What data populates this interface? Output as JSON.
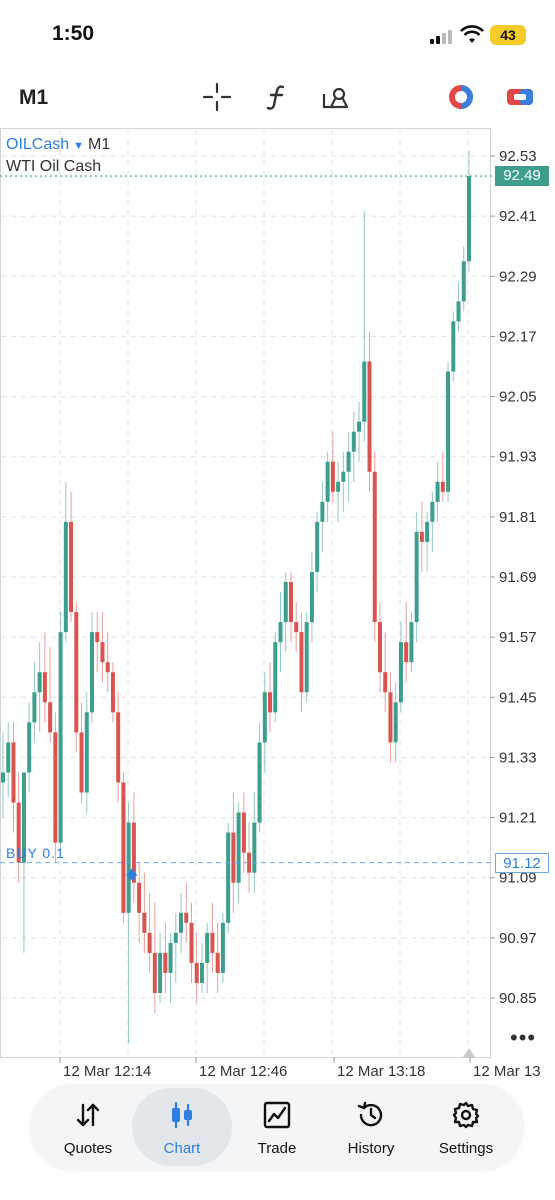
{
  "status": {
    "time": "1:50",
    "battery": "43"
  },
  "toolbar": {
    "timeframe": "M1"
  },
  "symbol": {
    "name": "OILCash",
    "timeframe": "M1",
    "description": "WTI Oil Cash"
  },
  "price_tags": {
    "current": "92.49",
    "buy": "91.12"
  },
  "buy_label": "BUY 0.1",
  "more": "•••",
  "chart_data": {
    "type": "candlestick",
    "y_ticks": [
      "92.53",
      "92.41",
      "92.29",
      "92.17",
      "92.05",
      "91.93",
      "91.81",
      "91.69",
      "91.57",
      "91.45",
      "91.33",
      "91.21",
      "91.09",
      "90.97",
      "90.85"
    ],
    "x_ticks": [
      "12 Mar 12:14",
      "12 Mar 12:46",
      "12 Mar 13:18",
      "12 Mar 13"
    ],
    "ylim": [
      90.78,
      92.56
    ],
    "current_price": 92.49,
    "buy_price": 91.12,
    "colors": {
      "up": "#3d9e8d",
      "down": "#d9534f",
      "grid": "#dde1e5",
      "current_line": "#3d9e8d",
      "buy_line": "#6aa8e8"
    },
    "candles": [
      [
        91.28,
        91.38,
        91.21,
        91.3
      ],
      [
        91.3,
        91.4,
        91.25,
        91.36
      ],
      [
        91.36,
        91.4,
        91.18,
        91.24
      ],
      [
        91.24,
        91.3,
        91.08,
        91.12
      ],
      [
        91.12,
        91.3,
        90.94,
        91.3
      ],
      [
        91.3,
        91.44,
        91.26,
        91.4
      ],
      [
        91.4,
        91.52,
        91.36,
        91.46
      ],
      [
        91.46,
        91.56,
        91.38,
        91.5
      ],
      [
        91.5,
        91.58,
        91.4,
        91.44
      ],
      [
        91.44,
        91.55,
        91.36,
        91.38
      ],
      [
        91.38,
        91.42,
        91.12,
        91.16
      ],
      [
        91.16,
        91.62,
        91.14,
        91.58
      ],
      [
        91.58,
        91.88,
        91.56,
        91.8
      ],
      [
        91.8,
        91.86,
        91.6,
        91.62
      ],
      [
        91.62,
        91.64,
        91.34,
        91.38
      ],
      [
        91.38,
        91.44,
        91.24,
        91.26
      ],
      [
        91.26,
        91.46,
        91.22,
        91.42
      ],
      [
        91.42,
        91.62,
        91.4,
        91.58
      ],
      [
        91.58,
        91.62,
        91.5,
        91.56
      ],
      [
        91.56,
        91.62,
        91.48,
        91.52
      ],
      [
        91.52,
        91.58,
        91.46,
        91.5
      ],
      [
        91.5,
        91.52,
        91.4,
        91.42
      ],
      [
        91.42,
        91.46,
        91.24,
        91.28
      ],
      [
        91.28,
        91.3,
        91.0,
        91.02
      ],
      [
        91.02,
        91.24,
        90.76,
        91.2
      ],
      [
        91.2,
        91.26,
        91.04,
        91.08
      ],
      [
        91.08,
        91.12,
        90.96,
        91.02
      ],
      [
        91.02,
        91.1,
        90.94,
        90.98
      ],
      [
        90.98,
        91.06,
        90.9,
        90.94
      ],
      [
        90.94,
        91.04,
        90.82,
        90.86
      ],
      [
        90.86,
        90.98,
        90.84,
        90.94
      ],
      [
        90.94,
        91.0,
        90.86,
        90.9
      ],
      [
        90.9,
        90.98,
        90.84,
        90.96
      ],
      [
        90.96,
        91.02,
        90.88,
        90.98
      ],
      [
        90.98,
        91.06,
        90.94,
        91.02
      ],
      [
        91.02,
        91.08,
        90.96,
        91.0
      ],
      [
        91.0,
        91.04,
        90.88,
        90.92
      ],
      [
        90.92,
        90.98,
        90.84,
        90.88
      ],
      [
        90.88,
        90.96,
        90.86,
        90.92
      ],
      [
        90.92,
        91.0,
        90.86,
        90.98
      ],
      [
        90.98,
        91.04,
        90.9,
        90.94
      ],
      [
        90.94,
        91.0,
        90.86,
        90.9
      ],
      [
        90.9,
        91.02,
        90.88,
        91.0
      ],
      [
        91.0,
        91.2,
        90.98,
        91.18
      ],
      [
        91.18,
        91.26,
        91.02,
        91.08
      ],
      [
        91.08,
        91.24,
        91.04,
        91.22
      ],
      [
        91.22,
        91.26,
        91.1,
        91.14
      ],
      [
        91.14,
        91.2,
        91.06,
        91.1
      ],
      [
        91.1,
        91.26,
        91.06,
        91.2
      ],
      [
        91.2,
        91.4,
        91.18,
        91.36
      ],
      [
        91.36,
        91.5,
        91.3,
        91.46
      ],
      [
        91.46,
        91.52,
        91.38,
        91.42
      ],
      [
        91.42,
        91.58,
        91.4,
        91.56
      ],
      [
        91.56,
        91.66,
        91.5,
        91.6
      ],
      [
        91.6,
        91.7,
        91.54,
        91.68
      ],
      [
        91.68,
        91.7,
        91.56,
        91.6
      ],
      [
        91.6,
        91.64,
        91.54,
        91.58
      ],
      [
        91.58,
        91.62,
        91.42,
        91.46
      ],
      [
        91.46,
        91.62,
        91.44,
        91.6
      ],
      [
        91.6,
        91.74,
        91.56,
        91.7
      ],
      [
        91.7,
        91.82,
        91.66,
        91.8
      ],
      [
        91.8,
        91.88,
        91.74,
        91.84
      ],
      [
        91.84,
        91.94,
        91.8,
        91.92
      ],
      [
        91.92,
        91.98,
        91.84,
        91.86
      ],
      [
        91.86,
        91.92,
        91.8,
        91.88
      ],
      [
        91.88,
        91.94,
        91.82,
        91.9
      ],
      [
        91.9,
        91.98,
        91.84,
        91.94
      ],
      [
        91.94,
        92.02,
        91.88,
        91.98
      ],
      [
        91.98,
        92.04,
        91.92,
        92.0
      ],
      [
        92.0,
        92.42,
        91.96,
        92.12
      ],
      [
        92.12,
        92.18,
        91.86,
        91.9
      ],
      [
        91.9,
        91.94,
        91.56,
        91.6
      ],
      [
        91.6,
        91.64,
        91.46,
        91.5
      ],
      [
        91.5,
        91.58,
        91.42,
        91.46
      ],
      [
        91.46,
        91.5,
        91.32,
        91.36
      ],
      [
        91.36,
        91.48,
        91.32,
        91.44
      ],
      [
        91.44,
        91.6,
        91.42,
        91.56
      ],
      [
        91.56,
        91.64,
        91.48,
        91.52
      ],
      [
        91.52,
        91.62,
        91.5,
        91.6
      ],
      [
        91.6,
        91.82,
        91.56,
        91.78
      ],
      [
        91.78,
        91.84,
        91.7,
        91.76
      ],
      [
        91.76,
        91.82,
        91.7,
        91.8
      ],
      [
        91.8,
        91.86,
        91.74,
        91.84
      ],
      [
        91.84,
        91.92,
        91.8,
        91.88
      ],
      [
        91.88,
        91.94,
        91.84,
        91.86
      ],
      [
        91.86,
        92.12,
        91.84,
        92.1
      ],
      [
        92.1,
        92.22,
        92.08,
        92.2
      ],
      [
        92.2,
        92.28,
        92.18,
        92.24
      ],
      [
        92.24,
        92.35,
        92.22,
        92.32
      ],
      [
        92.32,
        92.54,
        92.3,
        92.49
      ]
    ]
  },
  "nav": {
    "items": [
      {
        "label": "Quotes",
        "icon": "quotes-icon"
      },
      {
        "label": "Chart",
        "icon": "chart-icon",
        "active": true
      },
      {
        "label": "Trade",
        "icon": "trade-icon"
      },
      {
        "label": "History",
        "icon": "history-icon"
      },
      {
        "label": "Settings",
        "icon": "settings-icon"
      }
    ]
  }
}
